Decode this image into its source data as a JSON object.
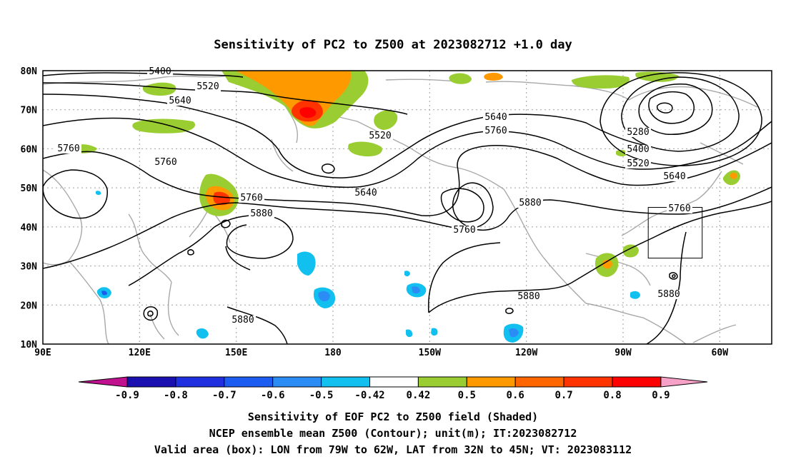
{
  "title": "Sensitivity of PC2 to Z500 at 2023082712 +1.0 day",
  "map": {
    "lat_ticks": [
      "80N",
      "70N",
      "60N",
      "50N",
      "40N",
      "30N",
      "20N",
      "10N"
    ],
    "lon_ticks": [
      "90E",
      "120E",
      "150E",
      "180",
      "150W",
      "120W",
      "90W",
      "60W"
    ],
    "contour_labels": [
      {
        "text": "5400"
      },
      {
        "text": "5520"
      },
      {
        "text": "5640"
      },
      {
        "text": "5760"
      },
      {
        "text": "5760"
      },
      {
        "text": "5520"
      },
      {
        "text": "5760"
      },
      {
        "text": "5880"
      },
      {
        "text": "5640"
      },
      {
        "text": "5640"
      },
      {
        "text": "5760"
      },
      {
        "text": "5760"
      },
      {
        "text": "5880"
      },
      {
        "text": "5880"
      },
      {
        "text": "5880"
      },
      {
        "text": "5280"
      },
      {
        "text": "5400"
      },
      {
        "text": "5520"
      },
      {
        "text": "5640"
      },
      {
        "text": "5760"
      },
      {
        "text": "5880"
      }
    ],
    "valid_box": {
      "lon_west": "79W",
      "lon_east": "62W",
      "lat_south": "32N",
      "lat_north": "45N"
    }
  },
  "colorbar": {
    "ticks": [
      "-0.9",
      "-0.8",
      "-0.7",
      "-0.6",
      "-0.5",
      "-0.42",
      "0.42",
      "0.5",
      "0.6",
      "0.7",
      "0.8",
      "0.9"
    ],
    "colors": {
      "under": "#c0128f",
      "bins": [
        "#1a10b0",
        "#2030e0",
        "#1c5cf0",
        "#2c8cf5",
        "#12c0f0",
        "#ffffff",
        "#9acd32",
        "#ff9900",
        "#ff6600",
        "#ff3300",
        "#ff0000"
      ],
      "over": "#f7a1c8"
    }
  },
  "captions": [
    "Sensitivity of EOF PC2 to Z500 field (Shaded)",
    "NCEP ensemble mean Z500 (Contour); unit(m); IT:2023082712",
    "Valid area (box): LON from 79W to 62W, LAT from 32N to 45N; VT: 2023083112"
  ]
}
